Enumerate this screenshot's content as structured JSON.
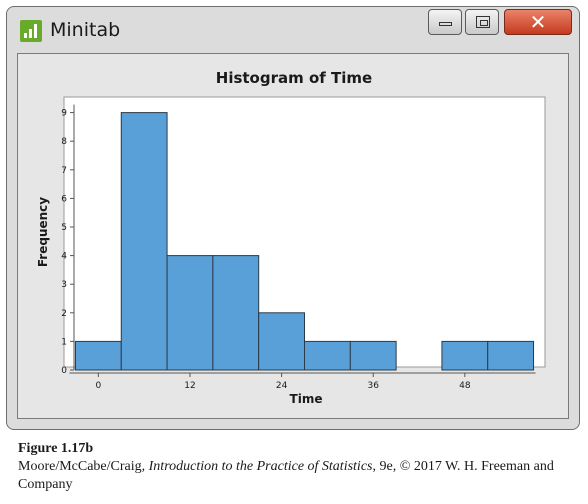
{
  "window": {
    "title": "Minitab",
    "buttons": {
      "minimize": "minimize",
      "maximize": "maximize",
      "close": "close"
    }
  },
  "chart_data": {
    "type": "bar",
    "title": "Histogram of Time",
    "xlabel": "Time",
    "ylabel": "Frequency",
    "bin_width": 6,
    "bins": [
      {
        "x0": -3,
        "x1": 3,
        "count": 1
      },
      {
        "x0": 3,
        "x1": 9,
        "count": 9
      },
      {
        "x0": 9,
        "x1": 15,
        "count": 4
      },
      {
        "x0": 15,
        "x1": 21,
        "count": 4
      },
      {
        "x0": 21,
        "x1": 27,
        "count": 2
      },
      {
        "x0": 27,
        "x1": 33,
        "count": 1
      },
      {
        "x0": 33,
        "x1": 39,
        "count": 1
      },
      {
        "x0": 39,
        "x1": 45,
        "count": 0
      },
      {
        "x0": 45,
        "x1": 51,
        "count": 1
      },
      {
        "x0": 51,
        "x1": 57,
        "count": 1
      }
    ],
    "xticks": [
      0,
      12,
      24,
      36,
      48
    ],
    "yticks": [
      0,
      1,
      2,
      3,
      4,
      5,
      6,
      7,
      8,
      9
    ],
    "xlim": [
      -4.5,
      58.5
    ],
    "ylim": [
      0,
      9.5
    ],
    "bar_color": "#5aa0d8",
    "grid": false,
    "legend": "none"
  },
  "caption": {
    "figure_label": "Figure 1.17b",
    "credit_before": "Moore/McCabe/Craig, ",
    "credit_title": "Introduction to the Practice of Statistics",
    "credit_after": ", 9e, © 2017 W. H. Freeman and Company"
  }
}
